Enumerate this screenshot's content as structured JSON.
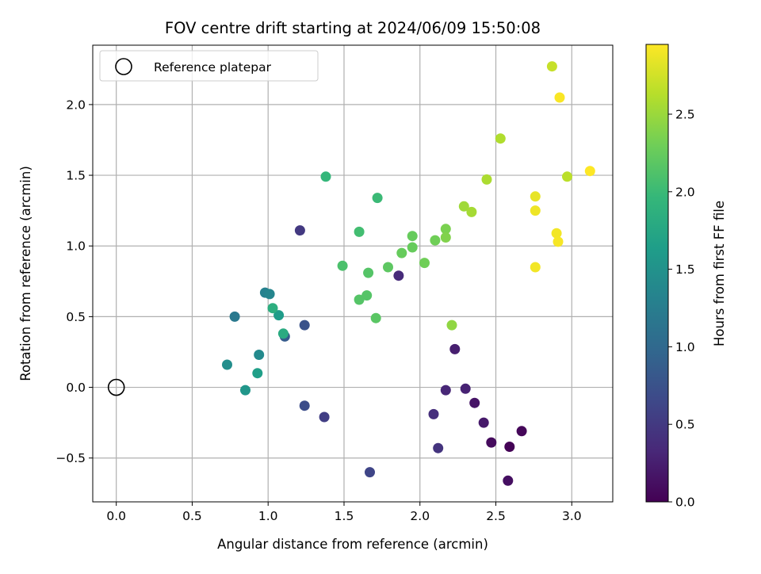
{
  "chart_data": {
    "type": "scatter",
    "title": "FOV centre drift starting at 2024/06/09 15:50:08",
    "xlabel": "Angular distance from reference (arcmin)",
    "ylabel": "Rotation from reference (arcmin)",
    "xlim": [
      -0.155,
      3.27
    ],
    "ylim": [
      -0.81,
      2.42
    ],
    "xticks": [
      "0.0",
      "0.5",
      "1.0",
      "1.5",
      "2.0",
      "2.5",
      "3.0"
    ],
    "yticks": [
      "−0.5",
      "0.0",
      "0.5",
      "1.0",
      "1.5",
      "2.0"
    ],
    "grid": true,
    "legend": {
      "placement": "top-left",
      "label": "Reference platepar",
      "marker": "hollow circle"
    },
    "reference": {
      "x": 0.0,
      "y": 0.0
    },
    "colorbar": {
      "label": "Hours from first FF file",
      "min": 0.0,
      "max": 2.95,
      "ticks": [
        "0.0",
        "0.5",
        "1.0",
        "1.5",
        "2.0",
        "2.5"
      ],
      "colormap": "viridis"
    },
    "points": [
      {
        "x": 2.59,
        "y": -0.42,
        "c": 0.02
      },
      {
        "x": 2.67,
        "y": -0.31,
        "c": 0.05
      },
      {
        "x": 2.47,
        "y": -0.39,
        "c": 0.08
      },
      {
        "x": 2.58,
        "y": -0.66,
        "c": 0.12
      },
      {
        "x": 2.36,
        "y": -0.11,
        "c": 0.16
      },
      {
        "x": 2.42,
        "y": -0.25,
        "c": 0.2
      },
      {
        "x": 2.23,
        "y": 0.27,
        "c": 0.25
      },
      {
        "x": 2.3,
        "y": -0.01,
        "c": 0.28
      },
      {
        "x": 2.17,
        "y": -0.02,
        "c": 0.32
      },
      {
        "x": 1.86,
        "y": 0.79,
        "c": 0.36
      },
      {
        "x": 2.09,
        "y": -0.19,
        "c": 0.4
      },
      {
        "x": 2.12,
        "y": -0.43,
        "c": 0.45
      },
      {
        "x": 1.21,
        "y": 1.11,
        "c": 0.5
      },
      {
        "x": 1.37,
        "y": -0.21,
        "c": 0.55
      },
      {
        "x": 1.67,
        "y": -0.6,
        "c": 0.62
      },
      {
        "x": 1.24,
        "y": -0.13,
        "c": 0.7
      },
      {
        "x": 1.24,
        "y": 0.44,
        "c": 0.75
      },
      {
        "x": 1.11,
        "y": 0.36,
        "c": 0.85
      },
      {
        "x": 0.78,
        "y": 0.5,
        "c": 1.2
      },
      {
        "x": 0.98,
        "y": 0.67,
        "c": 1.3
      },
      {
        "x": 1.01,
        "y": 0.66,
        "c": 1.35
      },
      {
        "x": 0.94,
        "y": 0.23,
        "c": 1.4
      },
      {
        "x": 0.73,
        "y": 0.16,
        "c": 1.45
      },
      {
        "x": 0.85,
        "y": -0.02,
        "c": 1.55
      },
      {
        "x": 1.07,
        "y": 0.51,
        "c": 1.62
      },
      {
        "x": 0.93,
        "y": 0.1,
        "c": 1.65
      },
      {
        "x": 1.1,
        "y": 0.38,
        "c": 1.8
      },
      {
        "x": 1.03,
        "y": 0.56,
        "c": 1.85
      },
      {
        "x": 1.38,
        "y": 1.49,
        "c": 1.95
      },
      {
        "x": 1.72,
        "y": 1.34,
        "c": 2.0
      },
      {
        "x": 1.6,
        "y": 1.1,
        "c": 2.05
      },
      {
        "x": 1.49,
        "y": 0.86,
        "c": 2.1
      },
      {
        "x": 1.6,
        "y": 0.62,
        "c": 2.15
      },
      {
        "x": 1.65,
        "y": 0.65,
        "c": 2.15
      },
      {
        "x": 1.66,
        "y": 0.81,
        "c": 2.15
      },
      {
        "x": 1.71,
        "y": 0.49,
        "c": 2.18
      },
      {
        "x": 1.79,
        "y": 0.85,
        "c": 2.2
      },
      {
        "x": 1.88,
        "y": 0.95,
        "c": 2.25
      },
      {
        "x": 1.95,
        "y": 1.07,
        "c": 2.25
      },
      {
        "x": 1.95,
        "y": 0.99,
        "c": 2.25
      },
      {
        "x": 2.03,
        "y": 0.88,
        "c": 2.3
      },
      {
        "x": 2.1,
        "y": 1.04,
        "c": 2.3
      },
      {
        "x": 2.17,
        "y": 1.12,
        "c": 2.35
      },
      {
        "x": 2.17,
        "y": 1.06,
        "c": 2.38
      },
      {
        "x": 2.21,
        "y": 0.44,
        "c": 2.45
      },
      {
        "x": 2.29,
        "y": 1.28,
        "c": 2.52
      },
      {
        "x": 2.34,
        "y": 1.24,
        "c": 2.55
      },
      {
        "x": 2.44,
        "y": 1.47,
        "c": 2.58
      },
      {
        "x": 2.53,
        "y": 1.76,
        "c": 2.6
      },
      {
        "x": 2.97,
        "y": 1.49,
        "c": 2.65
      },
      {
        "x": 2.87,
        "y": 2.27,
        "c": 2.7
      },
      {
        "x": 2.76,
        "y": 1.35,
        "c": 2.85
      },
      {
        "x": 2.76,
        "y": 1.25,
        "c": 2.88
      },
      {
        "x": 2.76,
        "y": 0.85,
        "c": 2.9
      },
      {
        "x": 2.9,
        "y": 1.09,
        "c": 2.9
      },
      {
        "x": 2.91,
        "y": 1.03,
        "c": 2.92
      },
      {
        "x": 2.92,
        "y": 2.05,
        "c": 2.93
      },
      {
        "x": 3.12,
        "y": 1.53,
        "c": 2.95
      }
    ]
  }
}
